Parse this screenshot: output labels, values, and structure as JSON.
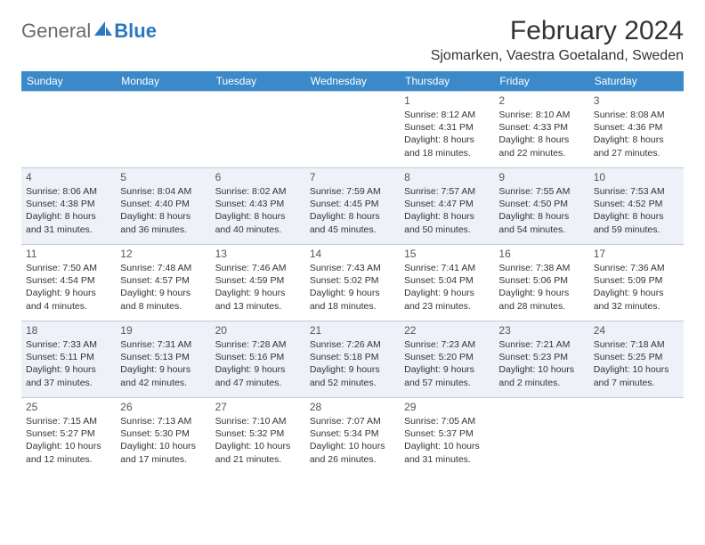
{
  "logo": {
    "general": "General",
    "blue": "Blue"
  },
  "title": "February 2024",
  "location": "Sjomarken, Vaestra Goetaland, Sweden",
  "colors": {
    "header_bg": "#3b89c9",
    "header_text": "#ffffff",
    "row_alt_bg": "#eef2f8",
    "border": "#b9cbe0",
    "logo_gray": "#6a6a6a",
    "logo_blue": "#2b77c0"
  },
  "weekdays": [
    "Sunday",
    "Monday",
    "Tuesday",
    "Wednesday",
    "Thursday",
    "Friday",
    "Saturday"
  ],
  "weeks": [
    [
      null,
      null,
      null,
      null,
      {
        "n": "1",
        "sr": "Sunrise: 8:12 AM",
        "ss": "Sunset: 4:31 PM",
        "d1": "Daylight: 8 hours",
        "d2": "and 18 minutes."
      },
      {
        "n": "2",
        "sr": "Sunrise: 8:10 AM",
        "ss": "Sunset: 4:33 PM",
        "d1": "Daylight: 8 hours",
        "d2": "and 22 minutes."
      },
      {
        "n": "3",
        "sr": "Sunrise: 8:08 AM",
        "ss": "Sunset: 4:36 PM",
        "d1": "Daylight: 8 hours",
        "d2": "and 27 minutes."
      }
    ],
    [
      {
        "n": "4",
        "sr": "Sunrise: 8:06 AM",
        "ss": "Sunset: 4:38 PM",
        "d1": "Daylight: 8 hours",
        "d2": "and 31 minutes."
      },
      {
        "n": "5",
        "sr": "Sunrise: 8:04 AM",
        "ss": "Sunset: 4:40 PM",
        "d1": "Daylight: 8 hours",
        "d2": "and 36 minutes."
      },
      {
        "n": "6",
        "sr": "Sunrise: 8:02 AM",
        "ss": "Sunset: 4:43 PM",
        "d1": "Daylight: 8 hours",
        "d2": "and 40 minutes."
      },
      {
        "n": "7",
        "sr": "Sunrise: 7:59 AM",
        "ss": "Sunset: 4:45 PM",
        "d1": "Daylight: 8 hours",
        "d2": "and 45 minutes."
      },
      {
        "n": "8",
        "sr": "Sunrise: 7:57 AM",
        "ss": "Sunset: 4:47 PM",
        "d1": "Daylight: 8 hours",
        "d2": "and 50 minutes."
      },
      {
        "n": "9",
        "sr": "Sunrise: 7:55 AM",
        "ss": "Sunset: 4:50 PM",
        "d1": "Daylight: 8 hours",
        "d2": "and 54 minutes."
      },
      {
        "n": "10",
        "sr": "Sunrise: 7:53 AM",
        "ss": "Sunset: 4:52 PM",
        "d1": "Daylight: 8 hours",
        "d2": "and 59 minutes."
      }
    ],
    [
      {
        "n": "11",
        "sr": "Sunrise: 7:50 AM",
        "ss": "Sunset: 4:54 PM",
        "d1": "Daylight: 9 hours",
        "d2": "and 4 minutes."
      },
      {
        "n": "12",
        "sr": "Sunrise: 7:48 AM",
        "ss": "Sunset: 4:57 PM",
        "d1": "Daylight: 9 hours",
        "d2": "and 8 minutes."
      },
      {
        "n": "13",
        "sr": "Sunrise: 7:46 AM",
        "ss": "Sunset: 4:59 PM",
        "d1": "Daylight: 9 hours",
        "d2": "and 13 minutes."
      },
      {
        "n": "14",
        "sr": "Sunrise: 7:43 AM",
        "ss": "Sunset: 5:02 PM",
        "d1": "Daylight: 9 hours",
        "d2": "and 18 minutes."
      },
      {
        "n": "15",
        "sr": "Sunrise: 7:41 AM",
        "ss": "Sunset: 5:04 PM",
        "d1": "Daylight: 9 hours",
        "d2": "and 23 minutes."
      },
      {
        "n": "16",
        "sr": "Sunrise: 7:38 AM",
        "ss": "Sunset: 5:06 PM",
        "d1": "Daylight: 9 hours",
        "d2": "and 28 minutes."
      },
      {
        "n": "17",
        "sr": "Sunrise: 7:36 AM",
        "ss": "Sunset: 5:09 PM",
        "d1": "Daylight: 9 hours",
        "d2": "and 32 minutes."
      }
    ],
    [
      {
        "n": "18",
        "sr": "Sunrise: 7:33 AM",
        "ss": "Sunset: 5:11 PM",
        "d1": "Daylight: 9 hours",
        "d2": "and 37 minutes."
      },
      {
        "n": "19",
        "sr": "Sunrise: 7:31 AM",
        "ss": "Sunset: 5:13 PM",
        "d1": "Daylight: 9 hours",
        "d2": "and 42 minutes."
      },
      {
        "n": "20",
        "sr": "Sunrise: 7:28 AM",
        "ss": "Sunset: 5:16 PM",
        "d1": "Daylight: 9 hours",
        "d2": "and 47 minutes."
      },
      {
        "n": "21",
        "sr": "Sunrise: 7:26 AM",
        "ss": "Sunset: 5:18 PM",
        "d1": "Daylight: 9 hours",
        "d2": "and 52 minutes."
      },
      {
        "n": "22",
        "sr": "Sunrise: 7:23 AM",
        "ss": "Sunset: 5:20 PM",
        "d1": "Daylight: 9 hours",
        "d2": "and 57 minutes."
      },
      {
        "n": "23",
        "sr": "Sunrise: 7:21 AM",
        "ss": "Sunset: 5:23 PM",
        "d1": "Daylight: 10 hours",
        "d2": "and 2 minutes."
      },
      {
        "n": "24",
        "sr": "Sunrise: 7:18 AM",
        "ss": "Sunset: 5:25 PM",
        "d1": "Daylight: 10 hours",
        "d2": "and 7 minutes."
      }
    ],
    [
      {
        "n": "25",
        "sr": "Sunrise: 7:15 AM",
        "ss": "Sunset: 5:27 PM",
        "d1": "Daylight: 10 hours",
        "d2": "and 12 minutes."
      },
      {
        "n": "26",
        "sr": "Sunrise: 7:13 AM",
        "ss": "Sunset: 5:30 PM",
        "d1": "Daylight: 10 hours",
        "d2": "and 17 minutes."
      },
      {
        "n": "27",
        "sr": "Sunrise: 7:10 AM",
        "ss": "Sunset: 5:32 PM",
        "d1": "Daylight: 10 hours",
        "d2": "and 21 minutes."
      },
      {
        "n": "28",
        "sr": "Sunrise: 7:07 AM",
        "ss": "Sunset: 5:34 PM",
        "d1": "Daylight: 10 hours",
        "d2": "and 26 minutes."
      },
      {
        "n": "29",
        "sr": "Sunrise: 7:05 AM",
        "ss": "Sunset: 5:37 PM",
        "d1": "Daylight: 10 hours",
        "d2": "and 31 minutes."
      },
      null,
      null
    ]
  ]
}
